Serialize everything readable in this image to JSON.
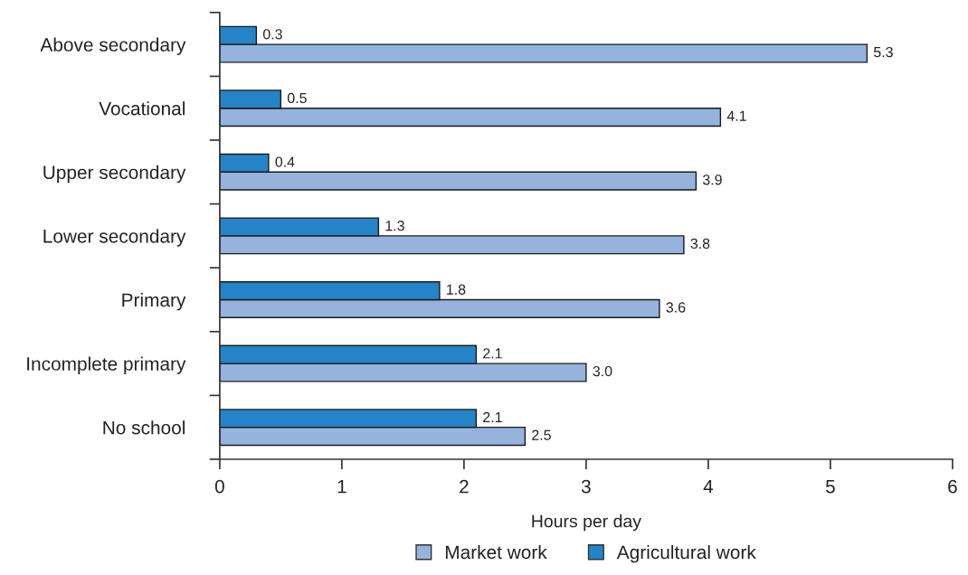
{
  "chart_data": {
    "type": "bar",
    "orientation": "horizontal",
    "categories": [
      "Above secondary",
      "Vocational",
      "Upper secondary",
      "Lower secondary",
      "Primary",
      "Incomplete primary",
      "No school"
    ],
    "series": [
      {
        "name": "Market work",
        "color": "#95b3dc",
        "values": [
          5.3,
          4.1,
          3.9,
          3.8,
          3.6,
          3.0,
          2.5
        ],
        "value_labels": [
          "5.3",
          "4.1",
          "3.9",
          "3.8",
          "3.6",
          "3.0",
          "2.5"
        ]
      },
      {
        "name": "Agricultural work",
        "color": "#2683c6",
        "values": [
          0.3,
          0.5,
          0.4,
          1.3,
          1.8,
          2.1,
          2.1
        ],
        "value_labels": [
          "0.3",
          "0.5",
          "0.4",
          "1.3",
          "1.8",
          "2.1",
          "2.1"
        ]
      }
    ],
    "xlabel": "Hours per day",
    "xlim": [
      0,
      6
    ],
    "xticks": [
      0,
      1,
      2,
      3,
      4,
      5,
      6
    ],
    "grid": false,
    "legend": "bottom"
  }
}
